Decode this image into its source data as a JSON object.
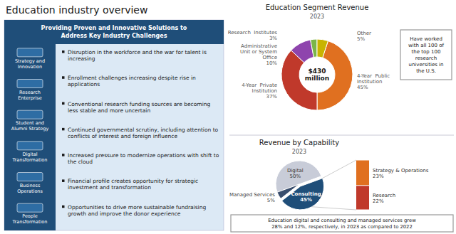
{
  "title": "Education industry overview",
  "panel": {
    "header": [
      "Providing Proven and Innovative Solutions to",
      "Address Key Industry Challenges"
    ],
    "sidebar": [
      "Strategy and\nInnovation",
      "Research\nEnterprise",
      "Student and\nAlumni Strategy",
      "Digital\nTransformation",
      "Business\nOperations",
      "People\nTransformation"
    ],
    "bullets": [
      "Disruption in the workforce and the war for talent is increasing",
      "Enrollment challenges increasing despite rise in applications",
      "Conventional research funding sources are becoming less stable and more uncertain",
      "Continued governmental scrutiny, including attention to conflicts of interest and foreign influence",
      "Increased pressure to modernize operations with shift to the cloud",
      "Financial profile creates opportunity for strategic investment and transformation",
      "Opportunities to drive more sustainable fundraising growth and improve the donor experience"
    ]
  },
  "chart_data": [
    {
      "type": "donut",
      "title": "Education Segment Revenue",
      "subtitle": "2023",
      "categories": [
        "4-Year  Public\nInstitution",
        "4-Year  Private\nInstitution",
        "Administrative\nUnit or System\nOffice",
        "Research  Institutes",
        "Other"
      ],
      "values": [
        45,
        37,
        10,
        3,
        5
      ],
      "value_labels": [
        "45%",
        "37%",
        "10%",
        "3%",
        "5%"
      ],
      "colors": [
        "#e07020",
        "#c0392b",
        "#8e44ad",
        "#7ab648",
        "#c8b400"
      ],
      "data_labels": true,
      "annotations": [
        "$430\nmillion",
        "Have worked\nwith all 100 of\nthe top 100\nresearch\nuniversities in\nthe U.S."
      ]
    },
    {
      "type": "pie",
      "title": "Revenue by Capability",
      "subtitle": "2023",
      "categories": [
        "Digital",
        "Consulting",
        "Managed Services"
      ],
      "values": [
        50,
        45,
        5
      ],
      "value_labels": [
        "50%",
        "45%",
        "5%"
      ],
      "colors": [
        "#c8ccd8",
        "#1f4e79",
        "#3a4f6e"
      ],
      "data_labels": true,
      "breakdown": {
        "categories": [
          "Strategy & Operations",
          "Research"
        ],
        "values": [
          23,
          22
        ],
        "value_labels": [
          "23%",
          "22%"
        ],
        "colors": [
          "#e07020",
          "#c0392b"
        ]
      },
      "annotations": [
        "Education digital and consulting and managed services grew\n28% and 12%, respectively, in 2023 as compared to 2022"
      ]
    }
  ]
}
